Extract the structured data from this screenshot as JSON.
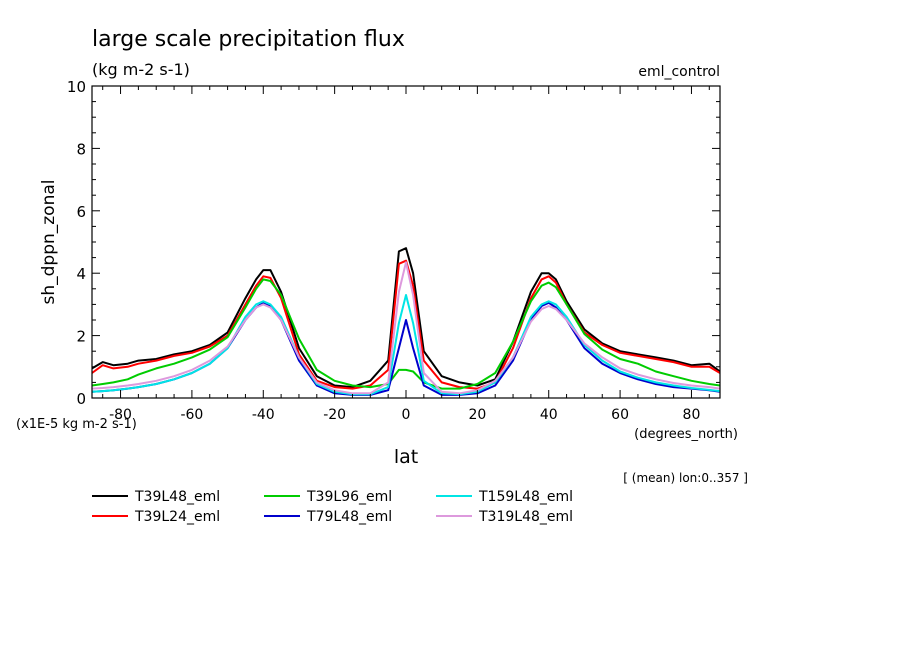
{
  "chart_data": {
    "type": "line",
    "title": "large scale precipitation flux",
    "subtitle": "(kg m-2 s-1)",
    "run_label": "eml_control",
    "xlabel": "lat",
    "x_units": "(degrees_north)",
    "ylabel": "sh_dppn_zonal",
    "y_scale_note": "(x1E-5 kg m-2 s-1)",
    "averaging_note": "[ (mean) lon:0..357 ]",
    "xlim": [
      -88,
      88
    ],
    "ylim": [
      0,
      10
    ],
    "x_ticks": [
      -80,
      -60,
      -40,
      -20,
      0,
      20,
      40,
      60,
      80
    ],
    "x_tick_labels": [
      "-80",
      "-60",
      "-40",
      "-20",
      "0",
      "20",
      "40",
      "60",
      "80"
    ],
    "y_ticks": [
      0,
      2,
      4,
      6,
      8,
      10
    ],
    "y_tick_labels": [
      "0",
      "2",
      "4",
      "6",
      "8",
      "10"
    ],
    "legend_position": "below-left",
    "series": [
      {
        "name": "T39L48_eml",
        "color": "#000000",
        "x": [
          -88,
          -85,
          -82,
          -78,
          -75,
          -70,
          -65,
          -60,
          -55,
          -50,
          -45,
          -42,
          -40,
          -38,
          -35,
          -30,
          -25,
          -20,
          -15,
          -10,
          -5,
          -2,
          0,
          2,
          5,
          10,
          15,
          20,
          25,
          30,
          35,
          38,
          40,
          42,
          45,
          50,
          55,
          60,
          65,
          70,
          75,
          80,
          85,
          88
        ],
        "y": [
          0.95,
          1.15,
          1.05,
          1.1,
          1.2,
          1.25,
          1.4,
          1.5,
          1.7,
          2.1,
          3.2,
          3.8,
          4.1,
          4.1,
          3.4,
          1.6,
          0.7,
          0.4,
          0.35,
          0.55,
          1.2,
          4.7,
          4.8,
          4.0,
          1.5,
          0.7,
          0.5,
          0.4,
          0.6,
          1.8,
          3.4,
          4.0,
          4.0,
          3.8,
          3.1,
          2.2,
          1.75,
          1.5,
          1.4,
          1.3,
          1.2,
          1.05,
          1.1,
          0.85
        ]
      },
      {
        "name": "T39L24_eml",
        "color": "#ff0000",
        "x": [
          -88,
          -85,
          -82,
          -78,
          -75,
          -70,
          -65,
          -60,
          -55,
          -50,
          -45,
          -42,
          -40,
          -38,
          -35,
          -30,
          -25,
          -20,
          -15,
          -10,
          -5,
          -2,
          0,
          2,
          5,
          10,
          15,
          20,
          25,
          30,
          35,
          38,
          40,
          42,
          45,
          50,
          55,
          60,
          65,
          70,
          75,
          80,
          85,
          88
        ],
        "y": [
          0.8,
          1.05,
          0.95,
          1.0,
          1.1,
          1.2,
          1.35,
          1.45,
          1.65,
          2.0,
          3.0,
          3.6,
          3.9,
          3.85,
          3.2,
          1.4,
          0.55,
          0.35,
          0.3,
          0.4,
          0.9,
          4.3,
          4.4,
          3.6,
          1.2,
          0.5,
          0.35,
          0.3,
          0.5,
          1.6,
          3.2,
          3.8,
          3.9,
          3.7,
          3.0,
          2.1,
          1.7,
          1.45,
          1.35,
          1.25,
          1.15,
          1.0,
          1.0,
          0.8
        ]
      },
      {
        "name": "T39L96_eml",
        "color": "#00cc00",
        "x": [
          -88,
          -85,
          -82,
          -78,
          -75,
          -70,
          -65,
          -60,
          -55,
          -50,
          -45,
          -42,
          -40,
          -38,
          -35,
          -30,
          -25,
          -20,
          -15,
          -10,
          -5,
          -2,
          0,
          2,
          5,
          10,
          15,
          20,
          25,
          30,
          35,
          38,
          40,
          42,
          45,
          50,
          55,
          60,
          65,
          70,
          75,
          80,
          85,
          88
        ],
        "y": [
          0.4,
          0.45,
          0.5,
          0.6,
          0.75,
          0.95,
          1.1,
          1.3,
          1.55,
          1.95,
          2.9,
          3.5,
          3.8,
          3.75,
          3.3,
          1.9,
          0.9,
          0.55,
          0.4,
          0.35,
          0.45,
          0.9,
          0.9,
          0.85,
          0.5,
          0.3,
          0.3,
          0.45,
          0.8,
          1.8,
          3.1,
          3.6,
          3.7,
          3.55,
          3.0,
          2.05,
          1.55,
          1.25,
          1.1,
          0.85,
          0.7,
          0.55,
          0.45,
          0.4
        ]
      },
      {
        "name": "T79L48_eml",
        "color": "#0000cc",
        "x": [
          -88,
          -85,
          -82,
          -78,
          -75,
          -70,
          -65,
          -60,
          -55,
          -50,
          -45,
          -42,
          -40,
          -38,
          -35,
          -30,
          -25,
          -20,
          -15,
          -10,
          -5,
          -2,
          0,
          2,
          5,
          10,
          15,
          20,
          25,
          30,
          35,
          38,
          40,
          42,
          45,
          50,
          55,
          60,
          65,
          70,
          75,
          80,
          85,
          88
        ],
        "y": [
          0.2,
          0.22,
          0.25,
          0.3,
          0.35,
          0.45,
          0.6,
          0.8,
          1.1,
          1.6,
          2.5,
          2.9,
          3.05,
          2.95,
          2.5,
          1.2,
          0.4,
          0.15,
          0.1,
          0.1,
          0.25,
          1.6,
          2.5,
          1.6,
          0.4,
          0.1,
          0.1,
          0.15,
          0.4,
          1.2,
          2.5,
          2.95,
          3.05,
          2.9,
          2.5,
          1.6,
          1.1,
          0.8,
          0.6,
          0.45,
          0.35,
          0.3,
          0.25,
          0.2
        ]
      },
      {
        "name": "T159L48_eml",
        "color": "#00e5e5",
        "x": [
          -88,
          -85,
          -82,
          -78,
          -75,
          -70,
          -65,
          -60,
          -55,
          -50,
          -45,
          -42,
          -40,
          -38,
          -35,
          -30,
          -25,
          -20,
          -15,
          -10,
          -5,
          -2,
          0,
          2,
          5,
          10,
          15,
          20,
          25,
          30,
          35,
          38,
          40,
          42,
          45,
          50,
          55,
          60,
          65,
          70,
          75,
          80,
          85,
          88
        ],
        "y": [
          0.2,
          0.22,
          0.25,
          0.3,
          0.35,
          0.45,
          0.6,
          0.8,
          1.1,
          1.6,
          2.6,
          3.0,
          3.1,
          3.0,
          2.6,
          1.3,
          0.45,
          0.2,
          0.12,
          0.12,
          0.35,
          2.4,
          3.3,
          2.4,
          0.55,
          0.15,
          0.12,
          0.2,
          0.5,
          1.3,
          2.6,
          3.0,
          3.1,
          3.0,
          2.6,
          1.7,
          1.2,
          0.85,
          0.65,
          0.5,
          0.4,
          0.32,
          0.26,
          0.22
        ]
      },
      {
        "name": "T319L48_eml",
        "color": "#dd99dd",
        "x": [
          -88,
          -85,
          -82,
          -78,
          -75,
          -70,
          -65,
          -60,
          -55,
          -50,
          -45,
          -42,
          -40,
          -38,
          -35,
          -30,
          -25,
          -20,
          -15,
          -10,
          -5,
          -2,
          0,
          2,
          5,
          10,
          15,
          20,
          25,
          30,
          35,
          38,
          40,
          42,
          45,
          50,
          55,
          60,
          65,
          70,
          75,
          80,
          85,
          88
        ],
        "y": [
          0.3,
          0.32,
          0.35,
          0.4,
          0.45,
          0.55,
          0.7,
          0.9,
          1.2,
          1.65,
          2.5,
          2.9,
          3.0,
          2.9,
          2.5,
          1.3,
          0.5,
          0.25,
          0.15,
          0.15,
          0.5,
          3.4,
          4.35,
          3.3,
          0.8,
          0.2,
          0.15,
          0.25,
          0.55,
          1.3,
          2.45,
          2.85,
          2.95,
          2.85,
          2.5,
          1.75,
          1.3,
          0.95,
          0.75,
          0.6,
          0.48,
          0.4,
          0.35,
          0.3
        ]
      }
    ]
  }
}
